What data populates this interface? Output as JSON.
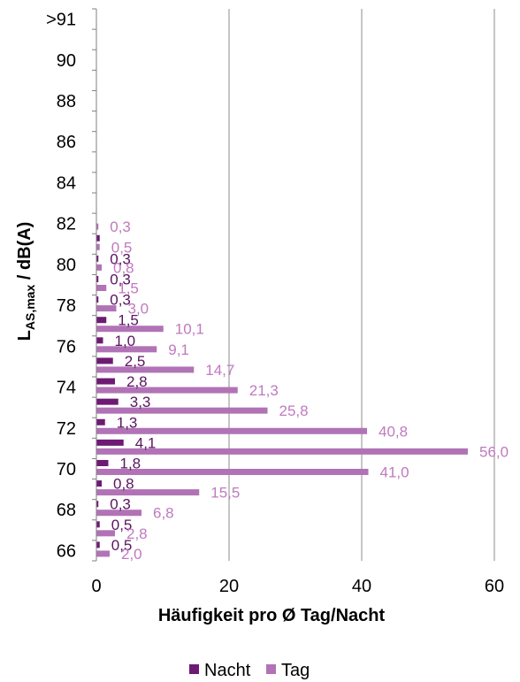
{
  "chart_data": {
    "type": "bar",
    "orientation": "horizontal",
    "categories": [
      "66",
      "",
      "68",
      "",
      "70",
      "",
      "72",
      "",
      "74",
      "",
      "76",
      "",
      "78",
      "",
      "80",
      "",
      "82",
      "",
      "84",
      "",
      "86",
      "",
      "88",
      "",
      "90",
      "",
      ">91"
    ],
    "series": [
      {
        "name": "Nacht",
        "color": "#6e1a74",
        "values": [
          0.5,
          0.5,
          0.3,
          0.8,
          1.8,
          4.1,
          1.3,
          3.3,
          2.8,
          2.5,
          1.0,
          1.5,
          0.3,
          0.3,
          0.3,
          0.5,
          0.0,
          0,
          0,
          0,
          0,
          0,
          0,
          0,
          0,
          0,
          0
        ],
        "labels": [
          "0,5",
          "0,5",
          "0,3",
          "0,8",
          "1,8",
          "4,1",
          "1,3",
          "3,3",
          "2,8",
          "2,5",
          "1,0",
          "1,5",
          "0,3",
          "0,3",
          "0,3",
          "",
          "",
          "",
          "",
          "",
          "",
          "",
          "",
          "",
          "",
          "",
          ""
        ]
      },
      {
        "name": "Tag",
        "color": "#b173b6",
        "values": [
          2.0,
          2.8,
          6.8,
          15.5,
          41.0,
          56.0,
          40.8,
          25.8,
          21.3,
          14.7,
          9.1,
          10.1,
          3.0,
          1.5,
          0.8,
          0.5,
          0.3,
          0,
          0,
          0,
          0,
          0,
          0,
          0,
          0,
          0,
          0
        ],
        "labels": [
          "2,0",
          "2,8",
          "6,8",
          "15,5",
          "41,0",
          "56,0",
          "40,8",
          "25,8",
          "21,3",
          "14,7",
          "9,1",
          "10,1",
          "3,0",
          "1,5",
          "0,8",
          "0,5",
          "0,3",
          "",
          "",
          "",
          "",
          "",
          "",
          "",
          "",
          "",
          ""
        ]
      }
    ],
    "xlabel": "Häufigkeit pro Ø Tag/Nacht",
    "ylabel_main": "L",
    "ylabel_sub": "AS,max",
    "ylabel_rest": " / dB(A)",
    "xlim": [
      0,
      60
    ],
    "xticks": [
      "0",
      "20",
      "40",
      "60"
    ],
    "grid": "vertical",
    "legend_position": "bottom",
    "legend": [
      "Nacht",
      "Tag"
    ]
  }
}
